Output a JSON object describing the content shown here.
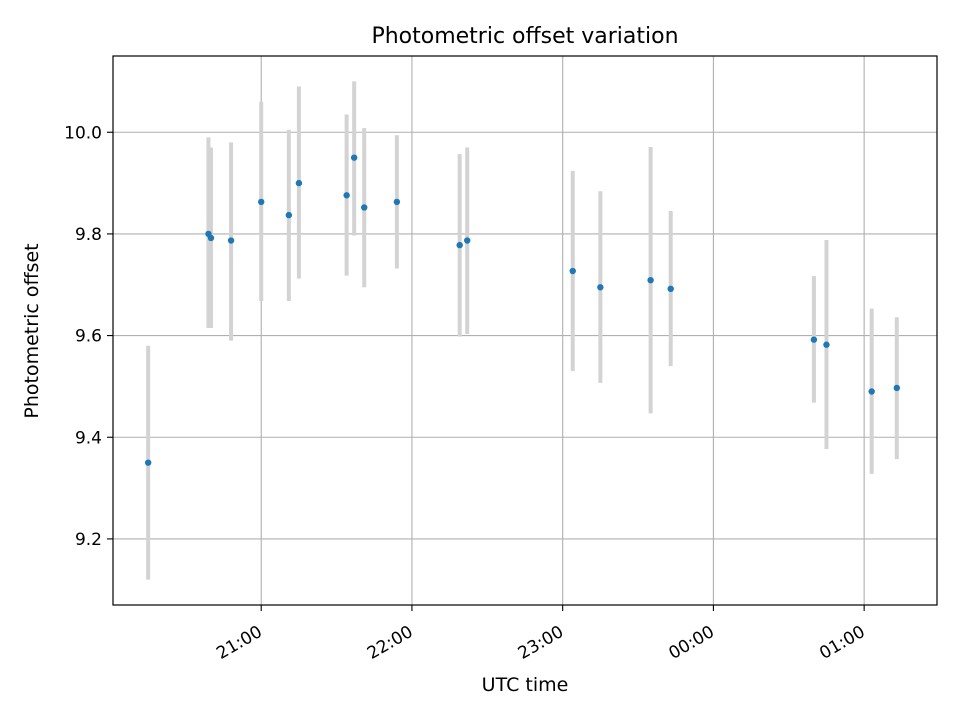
{
  "chart_data": {
    "type": "scatter",
    "title": "Photometric offset variation",
    "xlabel": "UTC time",
    "ylabel": "Photometric offset",
    "x_tick_labels": [
      "21:00",
      "22:00",
      "23:00",
      "00:00",
      "01:00"
    ],
    "y_tick_labels": [
      "9.2",
      "9.4",
      "9.6",
      "9.8",
      "10.0"
    ],
    "y_ticks": [
      9.2,
      9.4,
      9.6,
      9.8,
      10.0
    ],
    "x_ticks": [
      "21:00",
      "22:00",
      "23:00",
      "00:00",
      "01:00"
    ],
    "xlim": [
      "20:01",
      "01:29"
    ],
    "ylim": [
      9.07,
      10.15
    ],
    "grid": true,
    "colors": {
      "points": "#1f77b4",
      "errorbars": "#d3d3d3",
      "grid": "#b0b0b0",
      "axes": "#000000"
    },
    "series": [
      {
        "points": [
          {
            "x": "20:15",
            "y": 9.35,
            "yerr_low": 9.12,
            "yerr_high": 9.58
          },
          {
            "x": "20:39",
            "y": 9.8,
            "yerr_low": 9.615,
            "yerr_high": 9.99
          },
          {
            "x": "20:40",
            "y": 9.792,
            "yerr_low": 9.615,
            "yerr_high": 9.97
          },
          {
            "x": "20:48",
            "y": 9.787,
            "yerr_low": 9.59,
            "yerr_high": 9.98
          },
          {
            "x": "21:00",
            "y": 9.863,
            "yerr_low": 9.668,
            "yerr_high": 10.06
          },
          {
            "x": "21:11",
            "y": 9.837,
            "yerr_low": 9.668,
            "yerr_high": 10.005
          },
          {
            "x": "21:15",
            "y": 9.9,
            "yerr_low": 9.712,
            "yerr_high": 10.09
          },
          {
            "x": "21:34",
            "y": 9.876,
            "yerr_low": 9.718,
            "yerr_high": 10.035
          },
          {
            "x": "21:37",
            "y": 9.95,
            "yerr_low": 9.797,
            "yerr_high": 10.1
          },
          {
            "x": "21:41",
            "y": 9.852,
            "yerr_low": 9.695,
            "yerr_high": 10.008
          },
          {
            "x": "21:54",
            "y": 9.863,
            "yerr_low": 9.732,
            "yerr_high": 9.994
          },
          {
            "x": "22:19",
            "y": 9.778,
            "yerr_low": 9.598,
            "yerr_high": 9.957
          },
          {
            "x": "22:22",
            "y": 9.787,
            "yerr_low": 9.603,
            "yerr_high": 9.97
          },
          {
            "x": "23:04",
            "y": 9.727,
            "yerr_low": 9.53,
            "yerr_high": 9.924
          },
          {
            "x": "23:15",
            "y": 9.695,
            "yerr_low": 9.507,
            "yerr_high": 9.884
          },
          {
            "x": "23:35",
            "y": 9.709,
            "yerr_low": 9.447,
            "yerr_high": 9.971
          },
          {
            "x": "23:43",
            "y": 9.692,
            "yerr_low": 9.54,
            "yerr_high": 9.845
          },
          {
            "x": "00:40",
            "y": 9.592,
            "yerr_low": 9.468,
            "yerr_high": 9.717
          },
          {
            "x": "00:45",
            "y": 9.582,
            "yerr_low": 9.377,
            "yerr_high": 9.788
          },
          {
            "x": "01:03",
            "y": 9.49,
            "yerr_low": 9.328,
            "yerr_high": 9.653
          },
          {
            "x": "01:13",
            "y": 9.497,
            "yerr_low": 9.357,
            "yerr_high": 9.636
          }
        ]
      }
    ]
  }
}
